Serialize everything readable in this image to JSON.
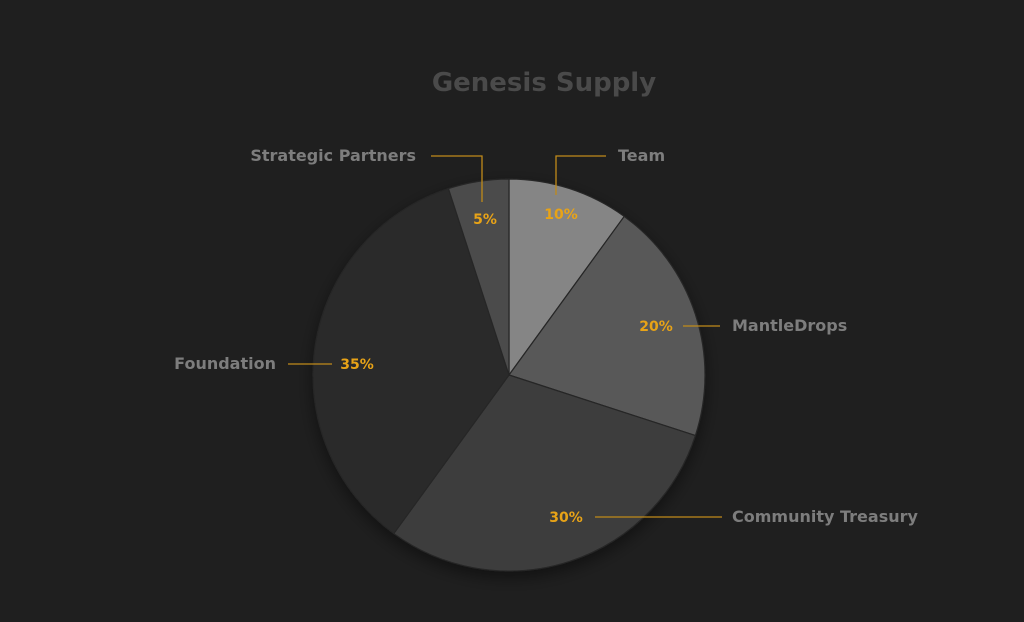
{
  "chart_data": {
    "type": "pie",
    "title": "Genesis Supply",
    "slices": [
      {
        "label": "Team",
        "value": 10,
        "display": "10%",
        "color": "#858585"
      },
      {
        "label": "MantleDrops",
        "value": 20,
        "display": "20%",
        "color": "#585858"
      },
      {
        "label": "Community Treasury",
        "value": 30,
        "display": "30%",
        "color": "#3e3e3e"
      },
      {
        "label": "Foundation",
        "value": 35,
        "display": "35%",
        "color": "#2b2b2b"
      },
      {
        "label": "Strategic Partners",
        "value": 5,
        "display": "5%",
        "color": "#4b4b4b"
      }
    ],
    "start_angle_deg": 0,
    "direction": "clockwise",
    "legend": "none",
    "colors": {
      "background": "#1f1f1f",
      "title": "#4a4a4a",
      "label_text": "#7d7d7d",
      "percent_text": "#e8a317",
      "leader_line": "#c08a1a"
    }
  }
}
